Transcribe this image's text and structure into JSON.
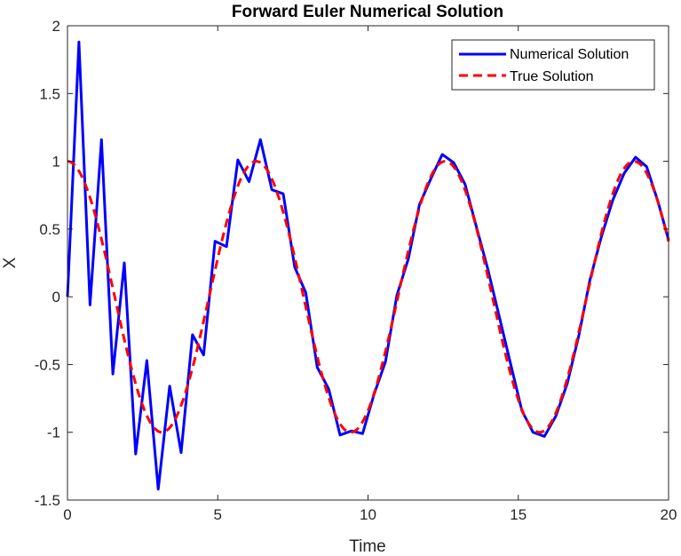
{
  "chart_data": {
    "type": "line",
    "title": "Forward Euler Numerical Solution",
    "xlabel": "Time",
    "ylabel": "X",
    "xlim": [
      0,
      20
    ],
    "ylim": [
      -1.5,
      2
    ],
    "xticks": [
      "0",
      "5",
      "10",
      "15",
      "20"
    ],
    "yticks": [
      "-1.5",
      "-1",
      "-0.5",
      "0",
      "0.5",
      "1",
      "1.5",
      "2"
    ],
    "grid": false,
    "legend_position": "top-right",
    "series": [
      {
        "name": "Numerical Solution",
        "color": "#0000ff",
        "style": "solid",
        "x": [
          0,
          0.38,
          0.75,
          1.13,
          1.51,
          1.89,
          2.27,
          2.64,
          3.02,
          3.4,
          3.78,
          4.16,
          4.53,
          4.91,
          5.29,
          5.67,
          6.04,
          6.42,
          6.8,
          7.18,
          7.56,
          7.93,
          8.31,
          8.69,
          9.07,
          9.45,
          9.82,
          10.2,
          10.58,
          10.96,
          11.34,
          11.71,
          12.09,
          12.47,
          12.85,
          13.23,
          13.6,
          13.98,
          14.36,
          14.74,
          15.12,
          15.49,
          15.87,
          16.25,
          16.63,
          17.01,
          17.38,
          17.76,
          18.14,
          18.52,
          18.9,
          19.27,
          19.65,
          20.0
        ],
        "y": [
          0,
          1.88,
          -0.06,
          1.16,
          -0.57,
          0.25,
          -1.16,
          -0.47,
          -1.42,
          -0.66,
          -1.15,
          -0.28,
          -0.43,
          0.41,
          0.37,
          1.01,
          0.85,
          1.16,
          0.79,
          0.76,
          0.22,
          0.03,
          -0.52,
          -0.68,
          -1.02,
          -0.99,
          -1.01,
          -0.72,
          -0.48,
          0.01,
          0.28,
          0.68,
          0.87,
          1.05,
          0.99,
          0.83,
          0.52,
          0.21,
          -0.14,
          -0.49,
          -0.84,
          -1.0,
          -1.03,
          -0.88,
          -0.64,
          -0.29,
          0.12,
          0.44,
          0.71,
          0.91,
          1.03,
          0.96,
          0.7,
          0.42
        ]
      },
      {
        "name": "True Solution",
        "color": "#ff0000",
        "style": "dashed",
        "function": "cos(t)"
      }
    ]
  }
}
